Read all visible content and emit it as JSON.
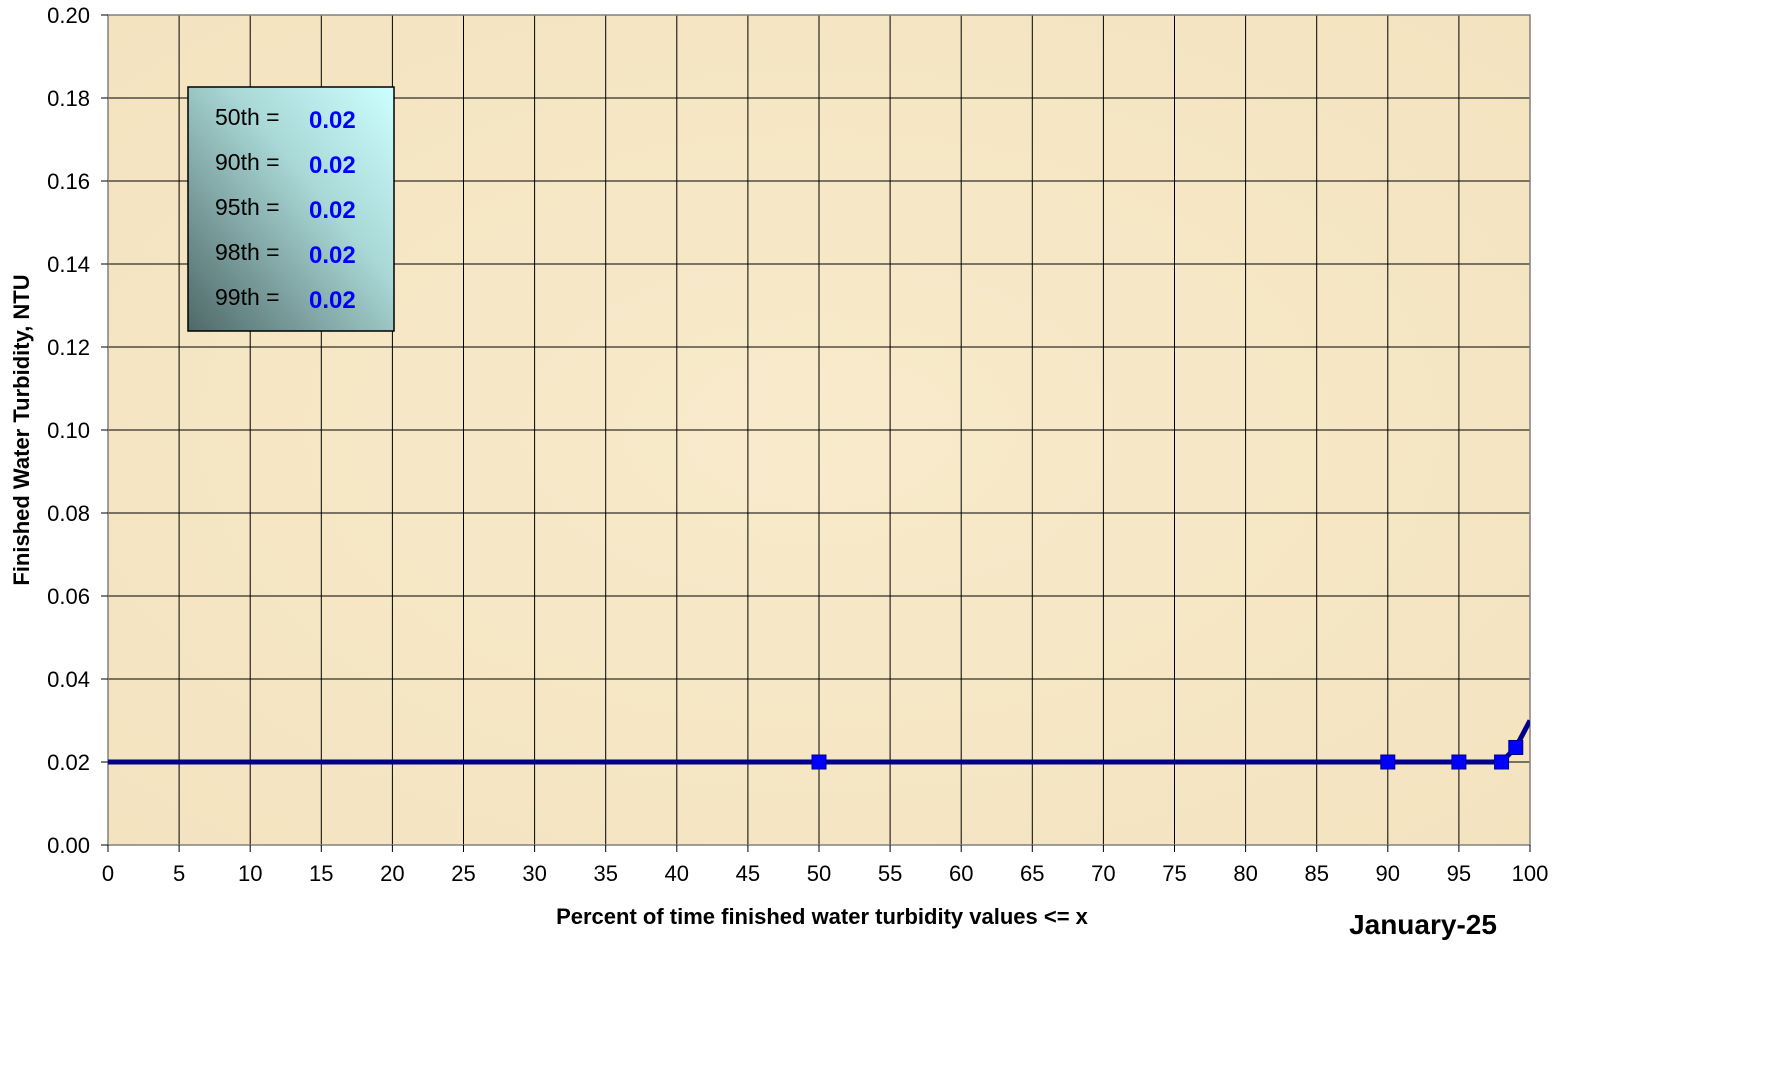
{
  "chart_data": {
    "type": "line",
    "title": "",
    "xlabel": "Percent of time finished water turbidity values <= x",
    "ylabel": "Finished Water Turbidity, NTU",
    "period_label": "January-25",
    "xlim": [
      0,
      100
    ],
    "ylim": [
      0,
      0.2
    ],
    "x_ticks": [
      0,
      5,
      10,
      15,
      20,
      25,
      30,
      35,
      40,
      45,
      50,
      55,
      60,
      65,
      70,
      75,
      80,
      85,
      90,
      95,
      100
    ],
    "y_ticks": [
      0,
      0.02,
      0.04,
      0.06,
      0.08,
      0.1,
      0.12,
      0.14,
      0.16,
      0.18,
      0.2
    ],
    "y_tick_labels": [
      "0.00",
      "0.02",
      "0.04",
      "0.06",
      "0.08",
      "0.10",
      "0.12",
      "0.14",
      "0.16",
      "0.18",
      "0.20"
    ],
    "grid": true,
    "series": [
      {
        "color": "#00008B",
        "x": [
          0,
          50,
          90,
          95,
          98,
          99,
          100
        ],
        "y": [
          0.02,
          0.02,
          0.02,
          0.02,
          0.02,
          0.0235,
          0.03
        ]
      }
    ],
    "markers": {
      "color": "#0000FF",
      "x": [
        50,
        90,
        95,
        98,
        99
      ],
      "y": [
        0.02,
        0.02,
        0.02,
        0.02,
        0.0235
      ]
    },
    "percentile_box": {
      "rows": [
        {
          "label": "50th =",
          "value": "0.02"
        },
        {
          "label": "90th =",
          "value": "0.02"
        },
        {
          "label": "95th =",
          "value": "0.02"
        },
        {
          "label": "98th =",
          "value": "0.02"
        },
        {
          "label": "99th =",
          "value": "0.02"
        }
      ],
      "value_color": "#0000FF"
    },
    "plot_background": "#F7E9C6"
  }
}
